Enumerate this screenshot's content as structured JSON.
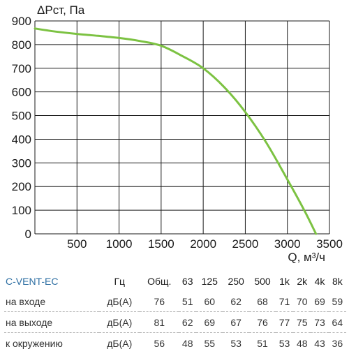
{
  "chart_data": {
    "type": "line",
    "ylabel": "ΔPст, Па",
    "xlabel": "Q, м³/ч",
    "xlim": [
      0,
      3500
    ],
    "ylim": [
      0,
      900
    ],
    "x_ticks": [
      500,
      1000,
      1500,
      2000,
      2500,
      3000,
      3500
    ],
    "y_ticks": [
      0,
      100,
      200,
      300,
      400,
      500,
      600,
      700,
      800,
      900
    ],
    "grid": true,
    "line_color": "#7cc242",
    "series": [
      {
        "x": [
          0,
          250,
          500,
          750,
          1000,
          1250,
          1500,
          1750,
          2000,
          2250,
          2500,
          2750,
          3000,
          3200,
          3340
        ],
        "y": [
          868,
          855,
          845,
          837,
          828,
          815,
          795,
          752,
          700,
          620,
          515,
          385,
          230,
          100,
          0
        ]
      }
    ]
  },
  "table": {
    "headers": [
      "C-VENT-EC",
      "Гц",
      "Общ.",
      "63",
      "125",
      "250",
      "500",
      "1k",
      "2k",
      "4k",
      "8k"
    ],
    "rows": [
      {
        "label": "на входе",
        "unit": "дБ(А)",
        "values": [
          "76",
          "51",
          "60",
          "62",
          "68",
          "71",
          "70",
          "69",
          "59"
        ]
      },
      {
        "label": "на выходе",
        "unit": "дБ(А)",
        "values": [
          "81",
          "62",
          "69",
          "67",
          "76",
          "77",
          "75",
          "73",
          "64"
        ]
      },
      {
        "label": "к окружению",
        "unit": "дБ(А)",
        "values": [
          "56",
          "48",
          "55",
          "53",
          "51",
          "53",
          "48",
          "43",
          "36"
        ]
      }
    ]
  }
}
